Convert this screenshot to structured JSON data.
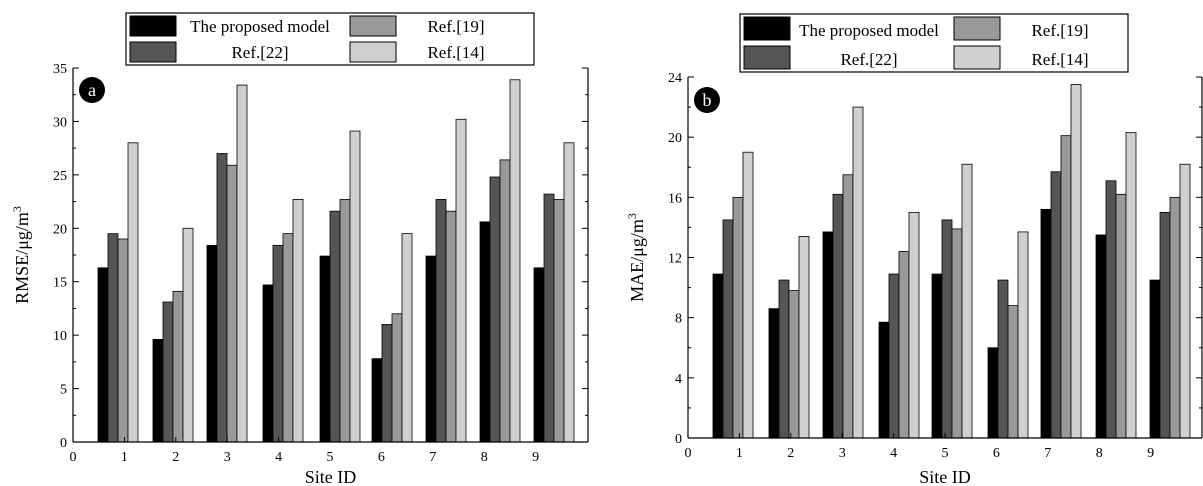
{
  "colors": {
    "series": [
      "#000000",
      "#555555",
      "#999999",
      "#d0d0d0"
    ],
    "axis": "#000000",
    "panel_badge": "#000000",
    "panel_badge_text": "#ffffff"
  },
  "legend": {
    "entries": [
      "The proposed model",
      "Ref.[22]",
      "Ref.[19]",
      "Ref.[14]"
    ]
  },
  "chart_data": [
    {
      "type": "bar",
      "panel_label": "a",
      "xlabel": "Site ID",
      "ylabel": "RMSE/μg/m",
      "ylabel_superscript": "3",
      "x_ticks": [
        0,
        1,
        2,
        3,
        4,
        5,
        6,
        7,
        8,
        9
      ],
      "y_ticks": [
        0,
        5,
        10,
        15,
        20,
        25,
        30,
        35
      ],
      "ylim": [
        0,
        35
      ],
      "categories": [
        1,
        2,
        3,
        4,
        5,
        6,
        7,
        8,
        9
      ],
      "series": [
        {
          "name": "The proposed model",
          "values": [
            16.3,
            9.6,
            18.4,
            14.7,
            17.4,
            7.8,
            17.4,
            20.6,
            16.3
          ]
        },
        {
          "name": "Ref.[22]",
          "values": [
            19.5,
            13.1,
            27.0,
            18.4,
            21.6,
            11.0,
            22.7,
            24.8,
            23.2
          ]
        },
        {
          "name": "Ref.[19]",
          "values": [
            19.0,
            14.1,
            25.9,
            19.5,
            22.7,
            12.0,
            21.6,
            26.4,
            22.7
          ]
        },
        {
          "name": "Ref.[14]",
          "values": [
            28.0,
            20.0,
            33.4,
            22.7,
            29.1,
            19.5,
            30.2,
            33.9,
            28.0
          ]
        }
      ]
    },
    {
      "type": "bar",
      "panel_label": "b",
      "xlabel": "Site ID",
      "ylabel": "MAE/μg/m",
      "ylabel_superscript": "3",
      "x_ticks": [
        0,
        1,
        2,
        3,
        4,
        5,
        6,
        7,
        8,
        9
      ],
      "y_ticks": [
        0,
        4,
        8,
        12,
        16,
        20,
        24
      ],
      "ylim": [
        0,
        24
      ],
      "categories": [
        1,
        2,
        3,
        4,
        5,
        6,
        7,
        8,
        9
      ],
      "series": [
        {
          "name": "The proposed model",
          "values": [
            10.9,
            8.6,
            13.7,
            7.7,
            10.9,
            6.0,
            15.2,
            13.5,
            10.5
          ]
        },
        {
          "name": "Ref.[22]",
          "values": [
            14.5,
            10.5,
            16.2,
            10.9,
            14.5,
            10.5,
            17.7,
            17.1,
            15.0
          ]
        },
        {
          "name": "Ref.[19]",
          "values": [
            16.0,
            9.8,
            17.5,
            12.4,
            13.9,
            8.8,
            20.1,
            16.2,
            16.0
          ]
        },
        {
          "name": "Ref.[14]",
          "values": [
            19.0,
            13.4,
            22.0,
            15.0,
            18.2,
            13.7,
            23.5,
            20.3,
            18.2
          ]
        }
      ]
    }
  ]
}
